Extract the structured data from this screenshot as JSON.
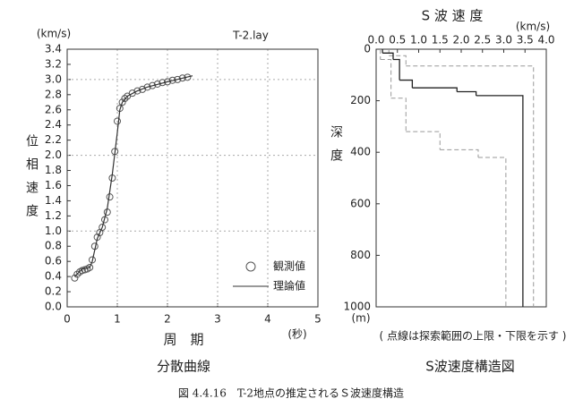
{
  "caption": "図 4.4.16　T-2地点の推定されるＳ波速度構造",
  "chart_data": [
    {
      "type": "scatter",
      "title": "T-2.lay",
      "y_unit": "(km/s)",
      "y_label": "位相速度",
      "x_label": "周　期",
      "x_unit": "(秒)",
      "caption": "分散曲線",
      "xlim": [
        0,
        5
      ],
      "xticks": [
        0,
        1,
        2,
        3,
        4,
        5
      ],
      "ylim": [
        0,
        3.4
      ],
      "yticks": [
        {
          "value": 0,
          "label": "0.0"
        },
        0.2,
        0.4,
        0.6,
        0.8,
        {
          "value": 1,
          "label": "1.0"
        },
        1.2,
        1.4,
        1.6,
        1.8,
        {
          "value": 2,
          "label": "2.0"
        },
        2.2,
        2.4,
        2.6,
        2.8,
        {
          "value": 3,
          "label": "3.0"
        },
        3.2,
        3.4
      ],
      "grid": true,
      "legend": "lower right",
      "series": [
        {
          "name": "観測値",
          "marker": "circle",
          "color": "#555555",
          "x": [
            0.15,
            0.2,
            0.25,
            0.3,
            0.35,
            0.4,
            0.45,
            0.5,
            0.55,
            0.6,
            0.65,
            0.7,
            0.75,
            0.8,
            0.85,
            0.9,
            0.95,
            1.0,
            1.05,
            1.1,
            1.15,
            1.2,
            1.3,
            1.4,
            1.5,
            1.6,
            1.7,
            1.8,
            1.9,
            2.0,
            2.1,
            2.2,
            2.3,
            2.4
          ],
          "values": [
            0.38,
            0.43,
            0.46,
            0.48,
            0.49,
            0.5,
            0.52,
            0.62,
            0.8,
            0.92,
            0.98,
            1.05,
            1.15,
            1.25,
            1.45,
            1.7,
            2.05,
            2.45,
            2.62,
            2.7,
            2.75,
            2.78,
            2.82,
            2.85,
            2.87,
            2.9,
            2.92,
            2.94,
            2.96,
            2.97,
            2.99,
            3.0,
            3.02,
            3.03
          ]
        },
        {
          "name": "理論値",
          "marker": "line",
          "color": "#333333",
          "x": [
            0.15,
            0.3,
            0.45,
            0.5,
            0.6,
            0.7,
            0.8,
            0.9,
            1.0,
            1.05,
            1.1,
            1.2,
            1.4,
            1.6,
            2.0,
            2.5
          ],
          "values": [
            0.4,
            0.5,
            0.52,
            0.6,
            0.9,
            1.05,
            1.3,
            1.75,
            2.3,
            2.6,
            2.7,
            2.78,
            2.85,
            2.9,
            2.97,
            3.05
          ]
        }
      ]
    },
    {
      "type": "step",
      "title": "S 波 速 度",
      "x_unit": "(km/s)",
      "y_label": "深度",
      "y_unit": "(m)",
      "caption": "S波速度構造図",
      "note": "( 点線は探索範囲の上限・下限を示す )",
      "xlim": [
        0,
        4
      ],
      "xticks": [
        {
          "value": 0,
          "label": "0.0"
        },
        0.5,
        {
          "value": 1,
          "label": "1.0"
        },
        1.5,
        {
          "value": 2,
          "label": "2.0"
        },
        2.5,
        {
          "value": 3,
          "label": "3.0"
        },
        3.5,
        {
          "value": 4,
          "label": "4.0"
        }
      ],
      "ylim": [
        0,
        1000
      ],
      "yticks": [
        0,
        200,
        400,
        600,
        800,
        1000
      ],
      "y_inverted": true,
      "series": [
        {
          "style": "dashed",
          "color": "#999999",
          "values": [
            0.1,
            0.35,
            0.7,
            1.5,
            2.4,
            3.05
          ],
          "depths": [
            0,
            40,
            190,
            320,
            390,
            420
          ]
        },
        {
          "style": "dashed",
          "color": "#999999",
          "values": [
            0.3,
            0.7,
            3.7
          ],
          "depths": [
            0,
            25,
            65
          ]
        },
        {
          "style": "solid",
          "color": "#222222",
          "values": [
            0.15,
            0.4,
            0.55,
            0.85,
            1.9,
            2.35,
            3.45
          ],
          "depths": [
            0,
            15,
            40,
            120,
            150,
            165,
            180
          ]
        }
      ]
    }
  ]
}
